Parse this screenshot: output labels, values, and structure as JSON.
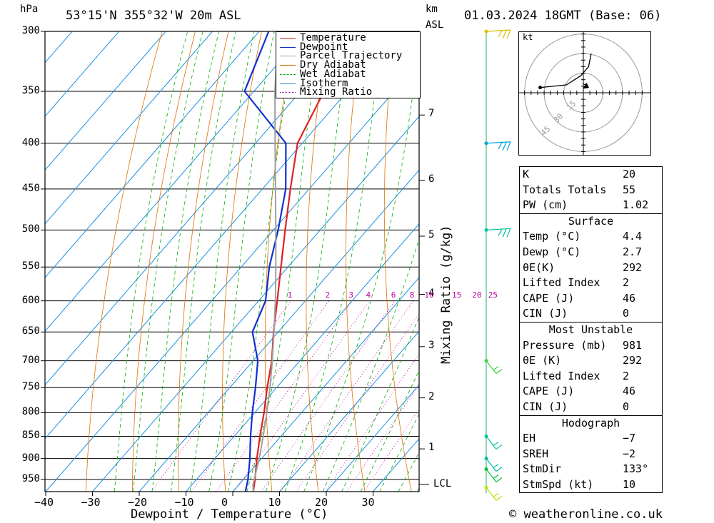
{
  "header": {
    "hpa_label": "hPa",
    "location": "53°15'N 355°32'W 20m ASL",
    "km_label": "km",
    "asl_label": "ASL",
    "datetime": "01.03.2024 18GMT (Base: 06)"
  },
  "footer": {
    "copyright": "© weatheronline.co.uk"
  },
  "chart_data": {
    "type": "skew-t",
    "title": "53°15'N 355°32'W 20m ASL",
    "xlabel": "Dewpoint / Temperature (°C)",
    "ylabel_right": "Mixing Ratio (g/kg)",
    "x_ticks": [
      "−40",
      "−30",
      "−20",
      "−10",
      "0",
      "10",
      "20",
      "30"
    ],
    "x_tick_values": [
      -40,
      -30,
      -20,
      -10,
      0,
      10,
      20,
      30
    ],
    "pressure_ticks": [
      "300",
      "350",
      "400",
      "450",
      "500",
      "550",
      "600",
      "650",
      "700",
      "750",
      "800",
      "850",
      "900",
      "950"
    ],
    "pressure_values": [
      300,
      350,
      400,
      450,
      500,
      550,
      600,
      650,
      700,
      750,
      800,
      850,
      900,
      950
    ],
    "pressure_range": [
      300,
      980
    ],
    "km_ticks": [
      "7",
      "6",
      "5",
      "4",
      "3",
      "2",
      "1"
    ],
    "km_pressures": [
      372,
      440,
      508,
      590,
      675,
      770,
      878
    ],
    "lcl_label": "LCL",
    "lcl_pressure": 962,
    "mixing_ratio_labels": [
      "1",
      "2",
      "3",
      "4",
      "6",
      "8",
      "10",
      "15",
      "20",
      "25"
    ],
    "mixing_ratio_values": [
      1,
      2,
      3,
      4,
      6,
      8,
      10,
      15,
      20,
      25
    ],
    "legend": [
      {
        "name": "Temperature",
        "color": "#e02020",
        "style": "solid"
      },
      {
        "name": "Dewpoint",
        "color": "#1030d0",
        "style": "solid"
      },
      {
        "name": "Parcel Trajectory",
        "color": "#a0a0a0",
        "style": "solid"
      },
      {
        "name": "Dry Adiabat",
        "color": "#e07000",
        "style": "solid"
      },
      {
        "name": "Wet Adiabat",
        "color": "#00b000",
        "style": "dashed"
      },
      {
        "name": "Isotherm",
        "color": "#1890e0",
        "style": "solid"
      },
      {
        "name": "Mixing Ratio",
        "color": "#c000a0",
        "style": "dotted"
      }
    ],
    "series": [
      {
        "name": "Temperature",
        "points": [
          [
            980,
            4.4
          ],
          [
            950,
            2.5
          ],
          [
            900,
            -1.0
          ],
          [
            850,
            -4.5
          ],
          [
            800,
            -8.0
          ],
          [
            750,
            -12.0
          ],
          [
            700,
            -16.0
          ],
          [
            650,
            -21.0
          ],
          [
            600,
            -26.0
          ],
          [
            550,
            -31.5
          ],
          [
            500,
            -37.5
          ],
          [
            450,
            -44.0
          ],
          [
            400,
            -51.0
          ],
          [
            350,
            -55.0
          ],
          [
            300,
            -53.0
          ]
        ]
      },
      {
        "name": "Dewpoint",
        "points": [
          [
            980,
            2.7
          ],
          [
            950,
            1.0
          ],
          [
            900,
            -2.5
          ],
          [
            850,
            -6.5
          ],
          [
            800,
            -10.5
          ],
          [
            750,
            -14.5
          ],
          [
            700,
            -19.0
          ],
          [
            650,
            -25.5
          ],
          [
            600,
            -28.5
          ],
          [
            550,
            -34.0
          ],
          [
            500,
            -39.0
          ],
          [
            450,
            -45.0
          ],
          [
            400,
            -53.5
          ],
          [
            350,
            -72.0
          ],
          [
            300,
            -78.0
          ]
        ]
      },
      {
        "name": "Parcel Trajectory",
        "points": [
          [
            980,
            4.4
          ],
          [
            962,
            3.0
          ],
          [
            900,
            -0.5
          ],
          [
            850,
            -3.8
          ],
          [
            800,
            -7.4
          ],
          [
            750,
            -11.4
          ],
          [
            700,
            -15.9
          ],
          [
            650,
            -20.9
          ],
          [
            600,
            -26.4
          ],
          [
            550,
            -32.6
          ],
          [
            500,
            -39.5
          ],
          [
            450,
            -47.2
          ],
          [
            400,
            -55.8
          ],
          [
            350,
            -65.5
          ],
          [
            300,
            -76.0
          ]
        ]
      }
    ],
    "wind_barbs": [
      {
        "pressure": 300,
        "color": "#e0c000"
      },
      {
        "pressure": 400,
        "color": "#00a0e0"
      },
      {
        "pressure": 500,
        "color": "#00c0a0"
      },
      {
        "pressure": 700,
        "color": "#40d040"
      },
      {
        "pressure": 850,
        "color": "#00c0a0"
      },
      {
        "pressure": 900,
        "color": "#00c0a0"
      },
      {
        "pressure": 925,
        "color": "#00c040"
      },
      {
        "pressure": 970,
        "color": "#c0e000"
      }
    ]
  },
  "hodograph": {
    "unit_label": "kt",
    "ring_labels": [
      "15",
      "30",
      "45"
    ],
    "ring_values": [
      15,
      30,
      45
    ],
    "max_speed": 50,
    "trace": [
      [
        -33,
        4
      ],
      [
        -13,
        6
      ],
      [
        -2,
        13
      ],
      [
        4,
        20
      ],
      [
        6,
        30
      ]
    ],
    "storm_motion": [
      4,
      4
    ]
  },
  "indices": {
    "rows": [
      {
        "label": "K",
        "value": "20"
      },
      {
        "label": "Totals Totals",
        "value": "55"
      },
      {
        "label": "PW (cm)",
        "value": "1.02"
      }
    ]
  },
  "surface": {
    "title": "Surface",
    "rows": [
      {
        "label": "Temp (°C)",
        "value": "4.4"
      },
      {
        "label": "Dewp (°C)",
        "value": "2.7"
      },
      {
        "label": "θE(K)",
        "value": "292"
      },
      {
        "label": "Lifted Index",
        "value": "2"
      },
      {
        "label": "CAPE (J)",
        "value": "46"
      },
      {
        "label": "CIN (J)",
        "value": "0"
      }
    ]
  },
  "most_unstable": {
    "title": "Most Unstable",
    "rows": [
      {
        "label": "Pressure (mb)",
        "value": "981"
      },
      {
        "label": "θE (K)",
        "value": "292"
      },
      {
        "label": "Lifted Index",
        "value": "2"
      },
      {
        "label": "CAPE (J)",
        "value": "46"
      },
      {
        "label": "CIN (J)",
        "value": "0"
      }
    ]
  },
  "hodograph_stats": {
    "title": "Hodograph",
    "rows": [
      {
        "label": "EH",
        "value": "−7"
      },
      {
        "label": "SREH",
        "value": "−2"
      },
      {
        "label": "StmDir",
        "value": "133°"
      },
      {
        "label": "StmSpd (kt)",
        "value": "10"
      }
    ]
  }
}
